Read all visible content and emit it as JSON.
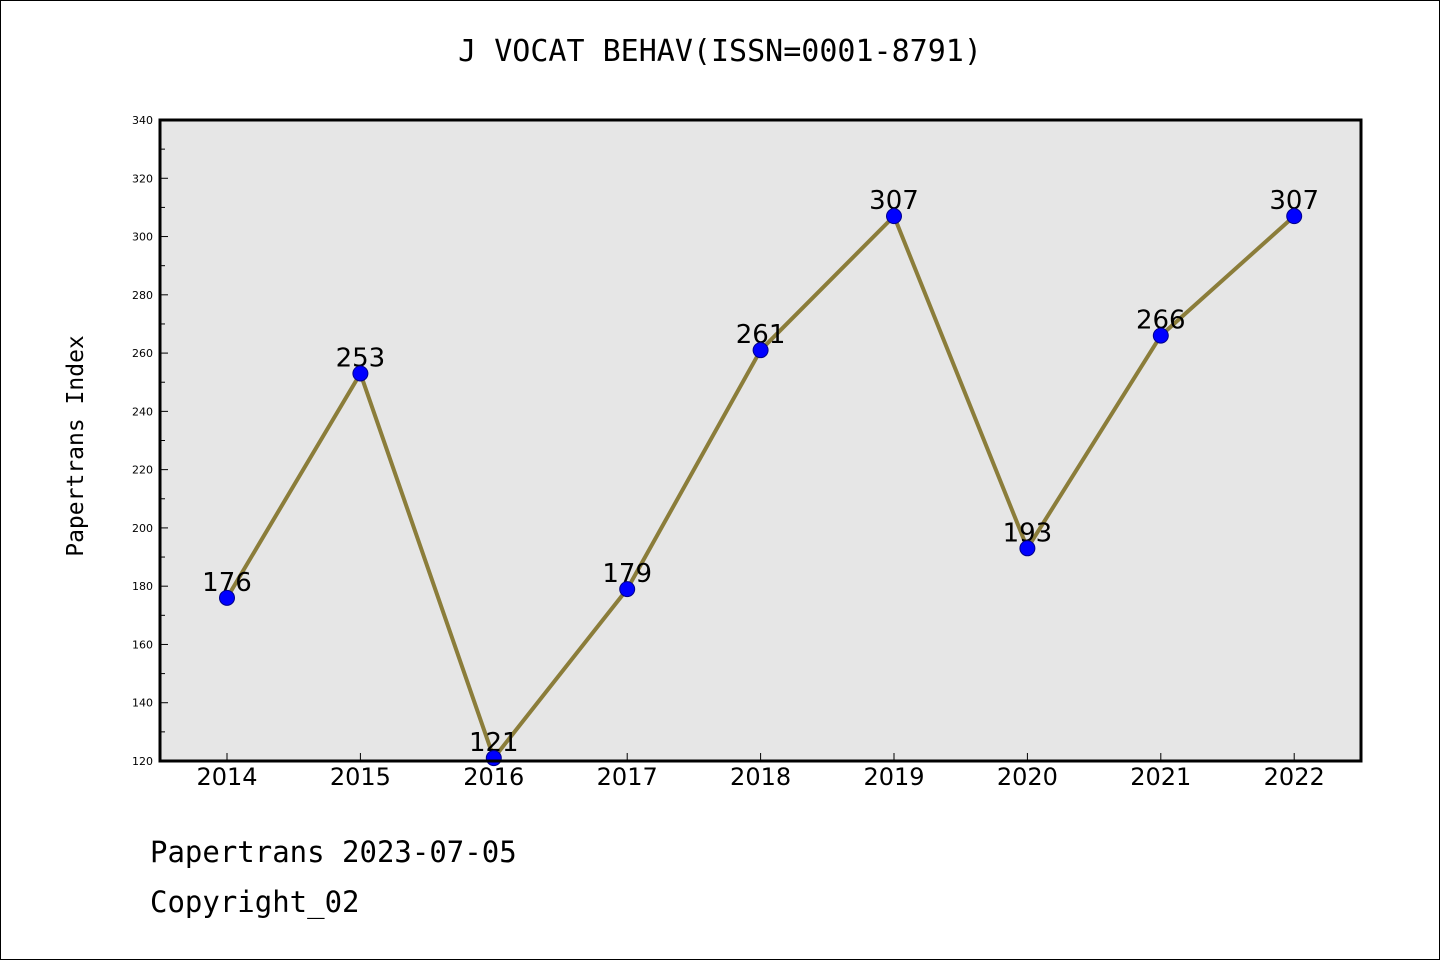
{
  "chart_data": {
    "type": "line",
    "title": "J VOCAT BEHAV(ISSN=0001-8791)",
    "xlabel": "",
    "ylabel": "Papertrans Index",
    "categories": [
      "2014",
      "2015",
      "2016",
      "2017",
      "2018",
      "2019",
      "2020",
      "2021",
      "2022"
    ],
    "series": [
      {
        "values": [
          176,
          253,
          121,
          179,
          261,
          307,
          193,
          266,
          307
        ]
      }
    ],
    "data_labels": [
      "176",
      "253",
      "121",
      "179",
      "261",
      "307",
      "193",
      "266",
      "307"
    ],
    "ylim": [
      120,
      340
    ],
    "yticks": [
      120,
      140,
      160,
      180,
      200,
      220,
      240,
      260,
      280,
      300,
      320,
      340
    ],
    "grid": false,
    "line_color": "#8b7d3a",
    "marker_color": "#0000ff",
    "plot_background": "#e6e6e6"
  },
  "footer": {
    "line1": "Papertrans 2023-07-05",
    "line2": "Copyright_02"
  }
}
